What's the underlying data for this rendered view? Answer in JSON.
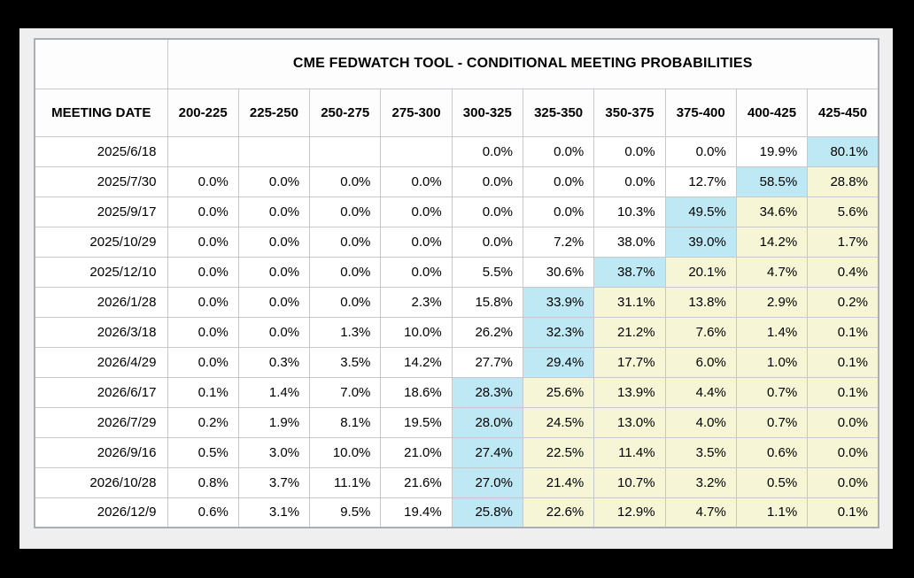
{
  "chart_data": {
    "type": "table",
    "title": "CME FEDWATCH TOOL - CONDITIONAL MEETING PROBABILITIES",
    "row_header": "MEETING DATE",
    "columns": [
      "200-225",
      "225-250",
      "250-275",
      "275-300",
      "300-325",
      "325-350",
      "350-375",
      "375-400",
      "400-425",
      "425-450"
    ],
    "value_unit": "%",
    "highlight_colors": {
      "blue": "#bee9f4",
      "yellow": "#f6f6d7"
    },
    "rows": [
      {
        "date": "2025/6/18",
        "values": [
          null,
          null,
          null,
          null,
          0.0,
          0.0,
          0.0,
          0.0,
          19.9,
          80.1
        ],
        "highlights": [
          "",
          "",
          "",
          "",
          "",
          "",
          "",
          "",
          "",
          "blue"
        ]
      },
      {
        "date": "2025/7/30",
        "values": [
          0.0,
          0.0,
          0.0,
          0.0,
          0.0,
          0.0,
          0.0,
          12.7,
          58.5,
          28.8
        ],
        "highlights": [
          "",
          "",
          "",
          "",
          "",
          "",
          "",
          "",
          "blue",
          "yellow"
        ]
      },
      {
        "date": "2025/9/17",
        "values": [
          0.0,
          0.0,
          0.0,
          0.0,
          0.0,
          0.0,
          10.3,
          49.5,
          34.6,
          5.6
        ],
        "highlights": [
          "",
          "",
          "",
          "",
          "",
          "",
          "",
          "blue",
          "yellow",
          "yellow"
        ]
      },
      {
        "date": "2025/10/29",
        "values": [
          0.0,
          0.0,
          0.0,
          0.0,
          0.0,
          7.2,
          38.0,
          39.0,
          14.2,
          1.7
        ],
        "highlights": [
          "",
          "",
          "",
          "",
          "",
          "",
          "",
          "blue",
          "yellow",
          "yellow"
        ]
      },
      {
        "date": "2025/12/10",
        "values": [
          0.0,
          0.0,
          0.0,
          0.0,
          5.5,
          30.6,
          38.7,
          20.1,
          4.7,
          0.4
        ],
        "highlights": [
          "",
          "",
          "",
          "",
          "",
          "",
          "blue",
          "yellow",
          "yellow",
          "yellow"
        ]
      },
      {
        "date": "2026/1/28",
        "values": [
          0.0,
          0.0,
          0.0,
          2.3,
          15.8,
          33.9,
          31.1,
          13.8,
          2.9,
          0.2
        ],
        "highlights": [
          "",
          "",
          "",
          "",
          "",
          "blue",
          "yellow",
          "yellow",
          "yellow",
          "yellow"
        ]
      },
      {
        "date": "2026/3/18",
        "values": [
          0.0,
          0.0,
          1.3,
          10.0,
          26.2,
          32.3,
          21.2,
          7.6,
          1.4,
          0.1
        ],
        "highlights": [
          "",
          "",
          "",
          "",
          "",
          "blue",
          "yellow",
          "yellow",
          "yellow",
          "yellow"
        ]
      },
      {
        "date": "2026/4/29",
        "values": [
          0.0,
          0.3,
          3.5,
          14.2,
          27.7,
          29.4,
          17.7,
          6.0,
          1.0,
          0.1
        ],
        "highlights": [
          "",
          "",
          "",
          "",
          "",
          "blue",
          "yellow",
          "yellow",
          "yellow",
          "yellow"
        ]
      },
      {
        "date": "2026/6/17",
        "values": [
          0.1,
          1.4,
          7.0,
          18.6,
          28.3,
          25.6,
          13.9,
          4.4,
          0.7,
          0.1
        ],
        "highlights": [
          "",
          "",
          "",
          "",
          "blue",
          "yellow",
          "yellow",
          "yellow",
          "yellow",
          "yellow"
        ]
      },
      {
        "date": "2026/7/29",
        "values": [
          0.2,
          1.9,
          8.1,
          19.5,
          28.0,
          24.5,
          13.0,
          4.0,
          0.7,
          0.0
        ],
        "highlights": [
          "",
          "",
          "",
          "",
          "blue",
          "yellow",
          "yellow",
          "yellow",
          "yellow",
          "yellow"
        ]
      },
      {
        "date": "2026/9/16",
        "values": [
          0.5,
          3.0,
          10.0,
          21.0,
          27.4,
          22.5,
          11.4,
          3.5,
          0.6,
          0.0
        ],
        "highlights": [
          "",
          "",
          "",
          "",
          "blue",
          "yellow",
          "yellow",
          "yellow",
          "yellow",
          "yellow"
        ]
      },
      {
        "date": "2026/10/28",
        "values": [
          0.8,
          3.7,
          11.1,
          21.6,
          27.0,
          21.4,
          10.7,
          3.2,
          0.5,
          0.0
        ],
        "highlights": [
          "",
          "",
          "",
          "",
          "blue",
          "yellow",
          "yellow",
          "yellow",
          "yellow",
          "yellow"
        ]
      },
      {
        "date": "2026/12/9",
        "values": [
          0.6,
          3.1,
          9.5,
          19.4,
          25.8,
          22.6,
          12.9,
          4.7,
          1.1,
          0.1
        ],
        "highlights": [
          "",
          "",
          "",
          "",
          "blue",
          "yellow",
          "yellow",
          "yellow",
          "yellow",
          "yellow"
        ]
      }
    ]
  },
  "colors": {
    "frame": "#000000",
    "panel_background": "#efeff0",
    "grid_line": "#c6c8ce",
    "table_outer_border": "#a9adb4",
    "cell_background": "#ffffff",
    "header_background": "#fdfdfd",
    "highlight_blue": "#bee9f4",
    "highlight_yellow": "#f6f6d7",
    "text": "#000000"
  }
}
